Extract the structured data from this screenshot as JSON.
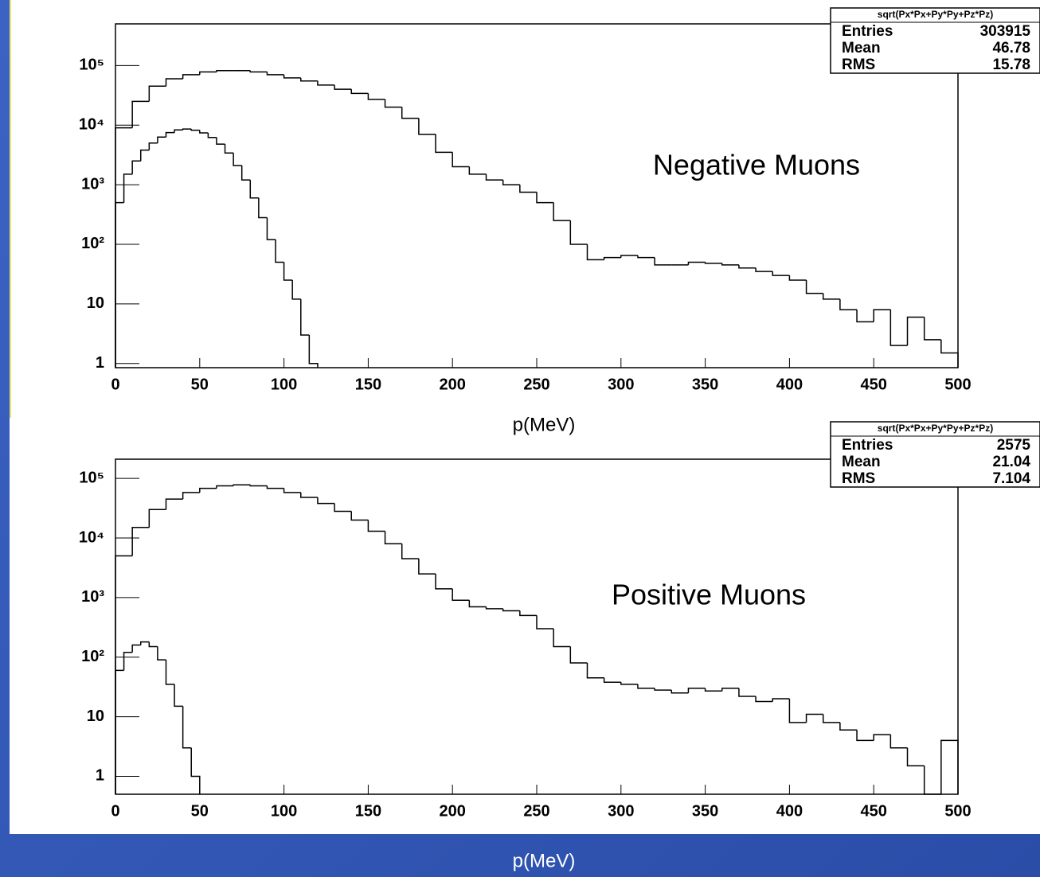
{
  "chart_data": [
    {
      "type": "histogram",
      "annotation": "Negative Muons",
      "xlabel": "p(MeV)",
      "xlim": [
        0,
        500
      ],
      "xticks": [
        0,
        50,
        100,
        150,
        200,
        250,
        300,
        350,
        400,
        450,
        500
      ],
      "ylim": [
        0.85,
        500000
      ],
      "log_y": true,
      "yticks": [
        1,
        10,
        {
          "value": 100,
          "label": "10²"
        },
        {
          "value": 1000,
          "label": "10³"
        },
        {
          "value": 10000,
          "label": "10⁴"
        },
        {
          "value": 100000,
          "label": "10⁵"
        }
      ],
      "series": [
        {
          "color": "#000000",
          "bins": [
            0,
            10,
            20,
            30,
            40,
            50,
            60,
            70,
            80,
            90,
            100,
            110,
            120,
            130,
            140,
            150,
            160,
            170,
            180,
            190,
            200,
            210,
            220,
            230,
            240,
            250,
            260,
            270,
            280,
            290,
            300,
            310,
            320,
            330,
            340,
            350,
            360,
            370,
            380,
            390,
            400,
            410,
            420,
            430,
            440,
            450,
            460,
            470,
            480,
            490,
            500
          ],
          "values": [
            9000,
            25000,
            45000,
            60000,
            70000,
            78000,
            82000,
            82000,
            78000,
            70000,
            62000,
            55000,
            47000,
            40000,
            34000,
            27000,
            20000,
            13000,
            7000,
            3500,
            2000,
            1500,
            1200,
            1000,
            750,
            500,
            250,
            100,
            55,
            60,
            65,
            60,
            45,
            45,
            50,
            48,
            45,
            40,
            35,
            30,
            25,
            15,
            12,
            8,
            5,
            8,
            2,
            6,
            2.5,
            1.5
          ]
        },
        {
          "color": "#000000",
          "bins": [
            0,
            5,
            10,
            15,
            20,
            25,
            30,
            35,
            40,
            45,
            50,
            55,
            60,
            65,
            70,
            75,
            80,
            85,
            90,
            95,
            100,
            105,
            110,
            115,
            120
          ],
          "values": [
            500,
            1500,
            2500,
            3800,
            5000,
            6300,
            7500,
            8300,
            8600,
            8200,
            7400,
            6200,
            4800,
            3400,
            2100,
            1200,
            600,
            280,
            120,
            50,
            25,
            12,
            3,
            1
          ]
        }
      ],
      "stats": {
        "title": "sqrt(Px*Px+Py*Py+Pz*Pz)",
        "rows": [
          {
            "label": "Entries",
            "value": 303915
          },
          {
            "label": "Mean",
            "value": 46.78
          },
          {
            "label": "RMS",
            "value": 15.78
          }
        ]
      }
    },
    {
      "type": "histogram",
      "annotation": "Positive Muons",
      "xlabel": "p(MeV)",
      "xlim": [
        0,
        500
      ],
      "xticks": [
        0,
        50,
        100,
        150,
        200,
        250,
        300,
        350,
        400,
        450,
        500
      ],
      "ylim": [
        0.5,
        210000
      ],
      "log_y": true,
      "yticks": [
        1,
        10,
        {
          "value": 100,
          "label": "10²"
        },
        {
          "value": 1000,
          "label": "10³"
        },
        {
          "value": 10000,
          "label": "10⁴"
        },
        {
          "value": 100000,
          "label": "10⁵"
        }
      ],
      "series": [
        {
          "color": "#000000",
          "bins": [
            0,
            10,
            20,
            30,
            40,
            50,
            60,
            70,
            80,
            90,
            100,
            110,
            120,
            130,
            140,
            150,
            160,
            170,
            180,
            190,
            200,
            210,
            220,
            230,
            240,
            250,
            260,
            270,
            280,
            290,
            300,
            310,
            320,
            330,
            340,
            350,
            360,
            370,
            380,
            390,
            400,
            410,
            420,
            430,
            440,
            450,
            460,
            470,
            480,
            490,
            500
          ],
          "values": [
            5000,
            15000,
            30000,
            45000,
            58000,
            68000,
            75000,
            78000,
            75000,
            68000,
            58000,
            48000,
            38000,
            28000,
            20000,
            13000,
            8000,
            4500,
            2500,
            1400,
            900,
            700,
            650,
            600,
            500,
            300,
            150,
            80,
            45,
            38,
            35,
            30,
            28,
            25,
            30,
            27,
            30,
            22,
            18,
            20,
            8,
            11,
            8,
            6,
            4,
            5,
            3,
            1.5,
            0.5,
            4
          ]
        },
        {
          "color": "#000000",
          "bins": [
            0,
            5,
            10,
            15,
            20,
            25,
            30,
            35,
            40,
            45,
            50
          ],
          "values": [
            60,
            120,
            160,
            180,
            150,
            90,
            35,
            15,
            3,
            1
          ]
        }
      ],
      "stats": {
        "title": "sqrt(Px*Px+Py*Py+Pz*Pz)",
        "rows": [
          {
            "label": "Entries",
            "value": 2575
          },
          {
            "label": "Mean",
            "value": 21.04
          },
          {
            "label": "RMS",
            "value": 7.104
          }
        ]
      }
    }
  ]
}
